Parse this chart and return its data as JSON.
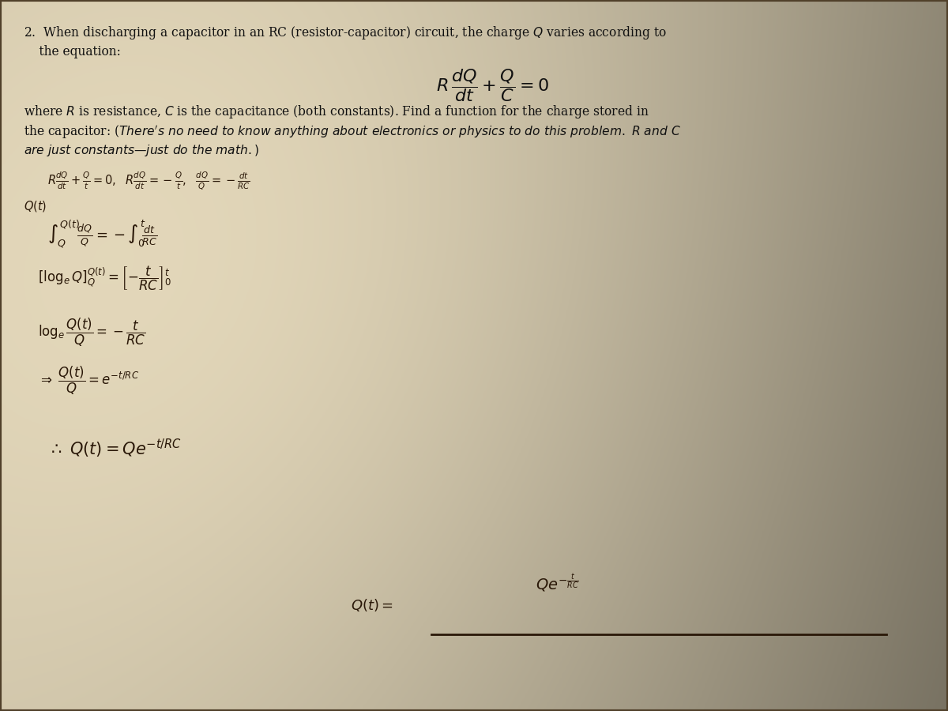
{
  "fig_w": 12.0,
  "fig_h": 9.0,
  "bg_dark": "#6b5f4a",
  "paper_light": "#e8dcc0",
  "paper_mid": "#ddd0aa",
  "paper_dark": "#c8ba98",
  "hw_color": "#2a1808",
  "text_color": "#111111",
  "title_line1": "2.  When discharging a capacitor in an RC (resistor-capacitor) circuit, the charge $Q$ varies according to",
  "title_line2": "    the equation:",
  "body_line1": "where $R$ is resistance, $C$ is the capacitance (both constants). Find a function for the charge stored in",
  "body_line2_a": "the capacitor: ",
  "body_line2_b": "($\\it{There's\\ no\\ need\\ to\\ know\\ anything\\ about\\ electronics\\ or\\ physics\\ to\\ do\\ this\\ problem.\\ R\\ and\\ C}$",
  "body_line3": "$\\it{are\\ just\\ constants\\textrm{---}just\\ do\\ the\\ math.)}$",
  "answer_label": "$Q(t) =$",
  "answer_value": "$Qe^{-\\frac{t}{RC}}$"
}
